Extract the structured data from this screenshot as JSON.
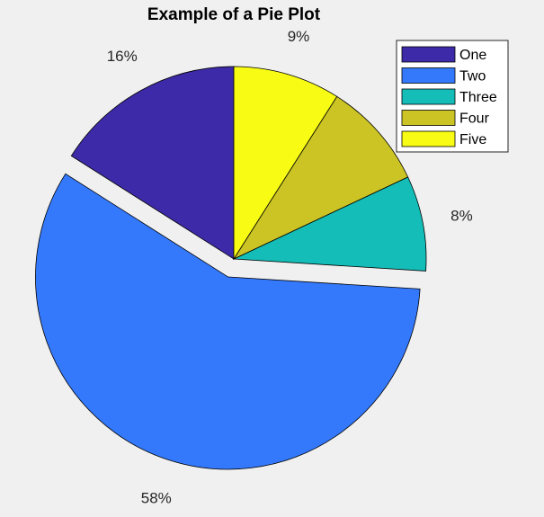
{
  "chart_data": {
    "type": "pie",
    "title": "Example of a Pie Plot",
    "categories": [
      "One",
      "Two",
      "Three",
      "Four",
      "Five"
    ],
    "values": [
      16,
      58,
      8,
      9,
      9
    ],
    "labels": [
      "16%",
      "58%",
      "8%",
      "",
      "9%"
    ],
    "explode": [
      false,
      true,
      false,
      false,
      false
    ],
    "colors": [
      "#3d2aa8",
      "#3479fc",
      "#14bdb8",
      "#cbc424",
      "#f8fb14"
    ],
    "legend_position": "top-right"
  }
}
